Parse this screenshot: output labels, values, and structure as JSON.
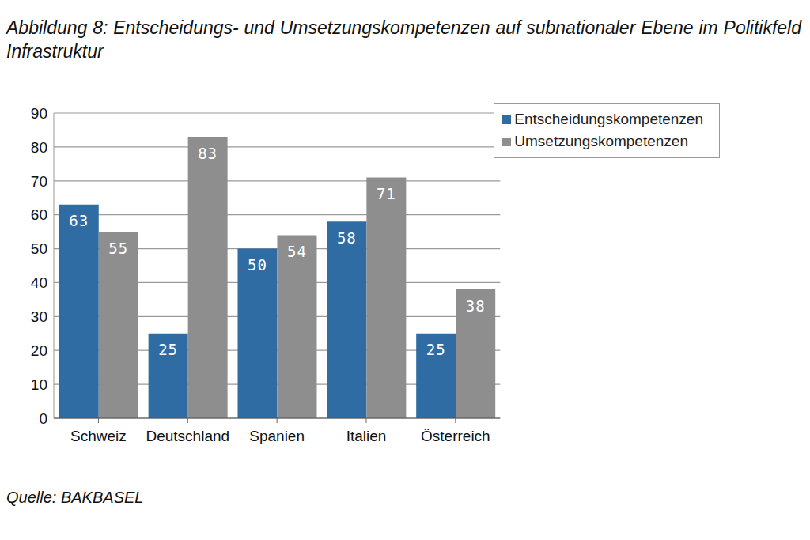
{
  "chart_data": {
    "type": "bar",
    "title": "Abbildung 8: Entscheidungs- und Umsetzungskompetenzen auf subnationaler Ebene im Politikfeld Infrastruktur",
    "source": "Quelle: BAKBASEL",
    "categories": [
      "Schweiz",
      "Deutschland",
      "Spanien",
      "Italien",
      "Österreich"
    ],
    "series": [
      {
        "name": "Entscheidungskompetenzen",
        "color": "#2f6ca4",
        "values": [
          63,
          25,
          50,
          58,
          25
        ]
      },
      {
        "name": "Umsetzungskompetenzen",
        "color": "#8e8e8e",
        "values": [
          55,
          83,
          54,
          71,
          38
        ]
      }
    ],
    "ylim": [
      0,
      90
    ],
    "yticks": [
      0,
      10,
      20,
      30,
      40,
      50,
      60,
      70,
      80,
      90
    ],
    "grid": true,
    "legend": "top-right",
    "data_labels": true
  }
}
